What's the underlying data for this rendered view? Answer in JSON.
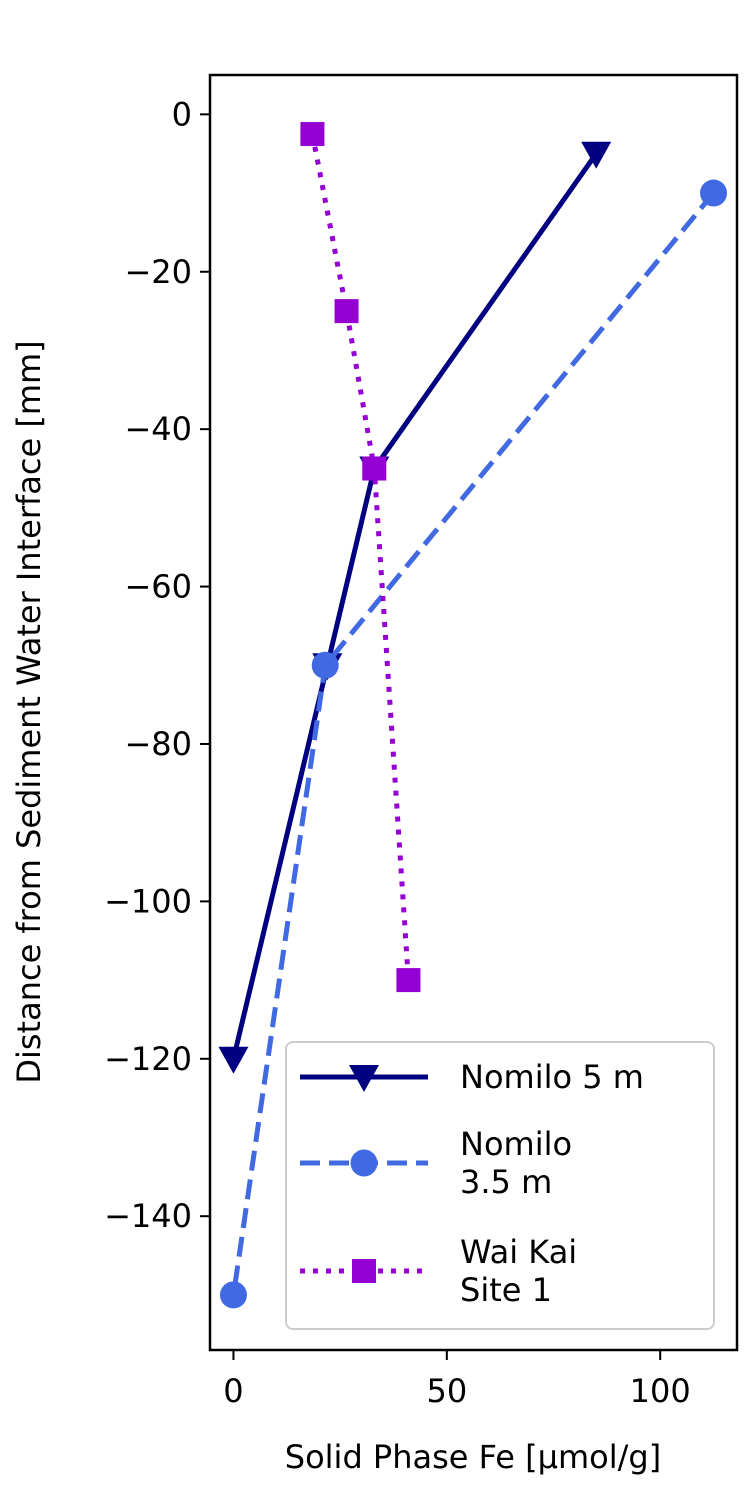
{
  "chart_data": {
    "type": "line",
    "xlabel": "Solid Phase Fe [µmol/g]",
    "ylabel": "Distance from Sediment Water Interface [mm]",
    "xlim": [
      -5.5,
      118
    ],
    "ylim": [
      -157,
      5
    ],
    "xticks": [
      0,
      50,
      100
    ],
    "yticks": [
      0,
      -20,
      -40,
      -60,
      -80,
      -100,
      -120,
      -140
    ],
    "grid": false,
    "legend_position": "bottom-right",
    "series": [
      {
        "name_lines": [
          "Nomilo 5 m"
        ],
        "color": "#000080",
        "line_style": "solid",
        "marker": "triangle-down",
        "points": [
          [
            85,
            -5
          ],
          [
            33,
            -45
          ],
          [
            22,
            -70
          ],
          [
            0,
            -120
          ]
        ]
      },
      {
        "name_lines": [
          "Nomilo",
          "3.5 m"
        ],
        "color": "#4169E1",
        "line_style": "dashed",
        "marker": "circle",
        "points": [
          [
            112.5,
            -10
          ],
          [
            21.5,
            -70
          ],
          [
            0,
            -150
          ]
        ]
      },
      {
        "name_lines": [
          "Wai Kai",
          "Site 1"
        ],
        "color": "#9400D3",
        "line_style": "dotted",
        "marker": "square",
        "points": [
          [
            18.5,
            -2.5
          ],
          [
            26.5,
            -25
          ],
          [
            33,
            -45
          ],
          [
            41,
            -110
          ]
        ]
      }
    ]
  }
}
